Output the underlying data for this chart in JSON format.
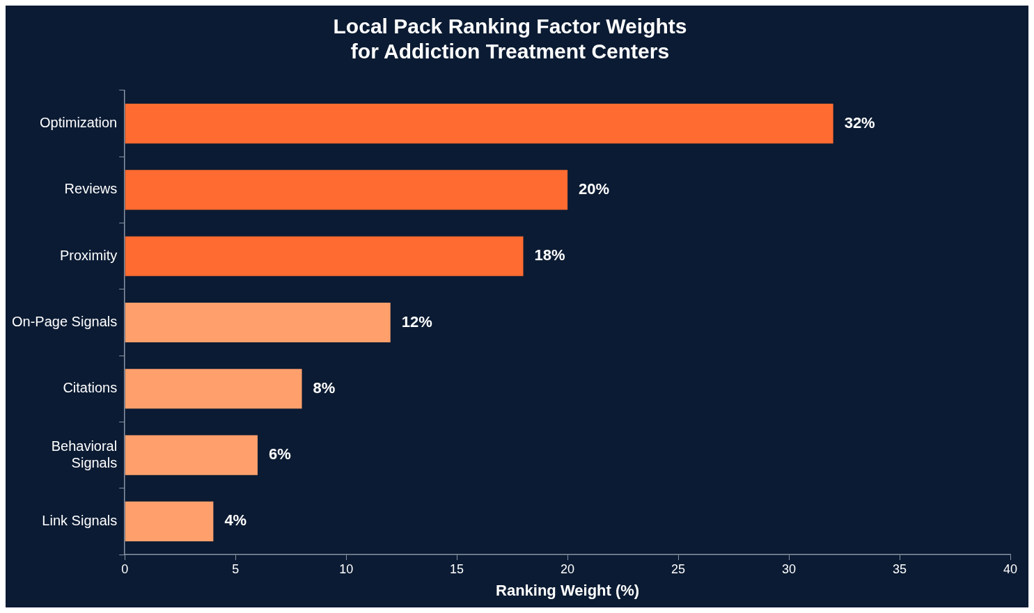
{
  "chart_data": {
    "type": "bar",
    "orientation": "horizontal",
    "title": "Local Pack Ranking Factor Weights\nfor Addiction Treatment Centers",
    "xlabel": "Ranking Weight (%)",
    "categories": [
      "Optimization",
      "Reviews",
      "Proximity",
      "On-Page Signals",
      "Citations",
      "Behavioral Signals",
      "Link Signals"
    ],
    "values": [
      32,
      20,
      18,
      12,
      8,
      6,
      4
    ],
    "colors": [
      "#ff6b30",
      "#ff6b30",
      "#ff6b30",
      "#ffa06c",
      "#ffa06c",
      "#ffa06c",
      "#ffa06c"
    ],
    "value_labels": [
      "32%",
      "20%",
      "18%",
      "12%",
      "8%",
      "6%",
      "4%"
    ],
    "xlim": [
      0,
      40
    ],
    "xticks": [
      0,
      5,
      10,
      15,
      20,
      25,
      30,
      35,
      40
    ],
    "grid": false,
    "legend": false
  }
}
